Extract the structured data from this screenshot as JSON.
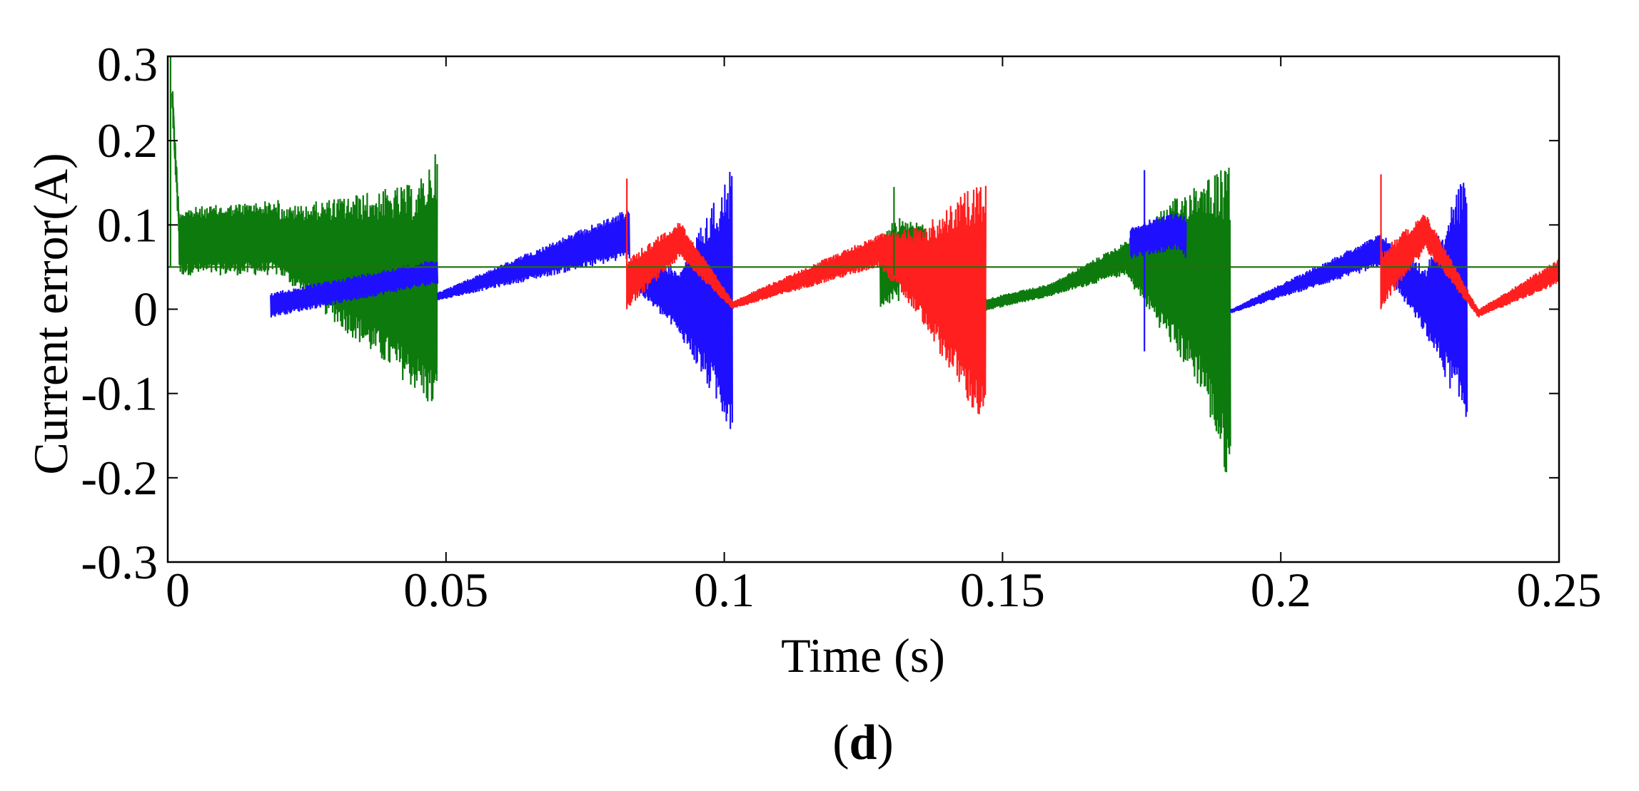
{
  "chart_data": {
    "type": "line",
    "title": "",
    "xlabel": "Time (s)",
    "ylabel": "Current error(A)",
    "panel_label": {
      "open": "(",
      "letter": "d",
      "close": ")"
    },
    "xlim": [
      0,
      0.25
    ],
    "ylim": [
      -0.3,
      0.3
    ],
    "xticks": [
      0,
      0.05,
      0.1,
      0.15,
      0.2,
      0.25
    ],
    "xtick_labels": [
      "0",
      "0.05",
      "0.1",
      "0.15",
      "0.2",
      "0.25"
    ],
    "yticks": [
      -0.3,
      -0.2,
      -0.1,
      0,
      0.1,
      0.2,
      0.3
    ],
    "ytick_labels": [
      "-0.3",
      "-0.2",
      "-0.1",
      "0",
      "0.1",
      "0.2",
      "0.3"
    ],
    "grid": false,
    "legend": "none",
    "colors": {
      "axes": "#000000",
      "blue": "#1f0fff",
      "red": "#ff1f1f",
      "green": "#0c7a0c"
    },
    "reference_lines": [
      {
        "name": "red-reference",
        "y": 0.05,
        "color": "#ff1f1f"
      },
      {
        "name": "green-reference",
        "y": 0.05,
        "color": "#0c7a0c"
      }
    ],
    "series": [
      {
        "name": "green",
        "color": "#0c7a0c",
        "segments": [
          {
            "t0": 0.0,
            "t1": 0.0008,
            "type": "spike",
            "center": 0.3,
            "amp": 0.0
          },
          {
            "t0": 0.0008,
            "t1": 0.002,
            "type": "decay",
            "from": 0.25,
            "to": 0.1
          },
          {
            "t0": 0.002,
            "t1": 0.02,
            "type": "band",
            "upper": [
              0.12,
              0.13
            ],
            "lower": [
              0.04,
              0.04
            ]
          },
          {
            "t0": 0.02,
            "t1": 0.045,
            "type": "band",
            "upper": [
              0.12,
              0.15
            ],
            "lower": [
              0.04,
              -0.1
            ]
          },
          {
            "t0": 0.045,
            "t1": 0.0485,
            "type": "band",
            "upper": [
              0.15,
              0.19
            ],
            "lower": [
              -0.1,
              -0.13
            ]
          },
          {
            "t0": 0.128,
            "t1": 0.1315,
            "type": "band",
            "upper": [
              0.09,
              0.11
            ],
            "lower": [
              0.0,
              0.01
            ]
          },
          {
            "t0": 0.1315,
            "t1": 0.136,
            "type": "band",
            "upper": [
              0.11,
              0.1
            ],
            "lower": [
              0.02,
              0.06
            ]
          },
          {
            "t0": 0.145,
            "t1": 0.1585,
            "type": "band",
            "upper": [
              0.01,
              0.03
            ],
            "lower": [
              -0.005,
              0.015
            ]
          },
          {
            "t0": 0.1585,
            "t1": 0.172,
            "type": "band",
            "upper": [
              0.03,
              0.08
            ],
            "lower": [
              0.015,
              0.04
            ]
          },
          {
            "t0": 0.172,
            "t1": 0.186,
            "type": "band",
            "upper": [
              0.08,
              0.16
            ],
            "lower": [
              0.04,
              -0.1
            ]
          },
          {
            "t0": 0.186,
            "t1": 0.191,
            "type": "band",
            "upper": [
              0.16,
              0.17
            ],
            "lower": [
              -0.1,
              -0.22
            ]
          }
        ]
      },
      {
        "name": "blue",
        "color": "#1f0fff",
        "segments": [
          {
            "t0": 0.0185,
            "t1": 0.0485,
            "type": "band",
            "upper": [
              0.02,
              0.06
            ],
            "lower": [
              -0.01,
              0.03
            ]
          },
          {
            "t0": 0.0485,
            "t1": 0.083,
            "type": "band",
            "upper": [
              0.02,
              0.12
            ],
            "lower": [
              0.01,
              0.06
            ]
          },
          {
            "t0": 0.083,
            "t1": 0.092,
            "type": "band",
            "upper": [
              0.06,
              0.05
            ],
            "lower": [
              0.03,
              -0.03
            ]
          },
          {
            "t0": 0.092,
            "t1": 0.1015,
            "type": "band",
            "upper": [
              0.05,
              0.17
            ],
            "lower": [
              -0.03,
              -0.15
            ]
          },
          {
            "t0": 0.173,
            "t1": 0.181,
            "type": "band",
            "upper": [
              0.1,
              0.115
            ],
            "lower": [
              0.06,
              0.07
            ]
          },
          {
            "t0": 0.181,
            "t1": 0.183,
            "type": "band",
            "upper": [
              0.115,
              0.11
            ],
            "lower": [
              0.07,
              0.06
            ]
          },
          {
            "t0": 0.191,
            "t1": 0.218,
            "type": "band",
            "upper": [
              0.0,
              0.09
            ],
            "lower": [
              -0.005,
              0.05
            ]
          },
          {
            "t0": 0.218,
            "t1": 0.226,
            "type": "band",
            "upper": [
              0.09,
              0.05
            ],
            "lower": [
              0.05,
              -0.03
            ]
          },
          {
            "t0": 0.226,
            "t1": 0.2335,
            "type": "band",
            "upper": [
              0.05,
              0.17
            ],
            "lower": [
              -0.03,
              -0.14
            ]
          }
        ]
      },
      {
        "name": "red",
        "color": "#ff1f1f",
        "segments": [
          {
            "t0": 0.0825,
            "t1": 0.092,
            "type": "band",
            "upper": [
              0.06,
              0.105
            ],
            "lower": [
              0.0,
              0.06
            ]
          },
          {
            "t0": 0.092,
            "t1": 0.1015,
            "type": "band",
            "upper": [
              0.105,
              0.01
            ],
            "lower": [
              0.06,
              0.0
            ]
          },
          {
            "t0": 0.1015,
            "t1": 0.128,
            "type": "band",
            "upper": [
              0.01,
              0.09
            ],
            "lower": [
              0.0,
              0.05
            ]
          },
          {
            "t0": 0.128,
            "t1": 0.136,
            "type": "band",
            "upper": [
              0.09,
              0.1
            ],
            "lower": [
              0.05,
              -0.02
            ]
          },
          {
            "t0": 0.136,
            "t1": 0.147,
            "type": "band",
            "upper": [
              0.1,
              0.16
            ],
            "lower": [
              -0.02,
              -0.15
            ]
          },
          {
            "t0": 0.218,
            "t1": 0.226,
            "type": "band",
            "upper": [
              0.07,
              0.115
            ],
            "lower": [
              0.0,
              0.07
            ]
          },
          {
            "t0": 0.226,
            "t1": 0.2355,
            "type": "band",
            "upper": [
              0.115,
              0.0
            ],
            "lower": [
              0.07,
              -0.01
            ]
          },
          {
            "t0": 0.2355,
            "t1": 0.25,
            "type": "band",
            "upper": [
              0.0,
              0.06
            ],
            "lower": [
              -0.01,
              0.03
            ]
          }
        ]
      }
    ],
    "spikes": [
      {
        "series": "red",
        "t": 0.0825,
        "y0": 0.0,
        "y1": 0.155
      },
      {
        "series": "red",
        "t": 0.218,
        "y0": 0.0,
        "y1": 0.16
      },
      {
        "series": "blue",
        "t": 0.1755,
        "y0": -0.05,
        "y1": 0.165
      },
      {
        "series": "green",
        "t": 0.1305,
        "y0": 0.04,
        "y1": 0.145
      },
      {
        "series": "green",
        "t": 0.0005,
        "y0": 0.05,
        "y1": 0.3
      }
    ]
  }
}
